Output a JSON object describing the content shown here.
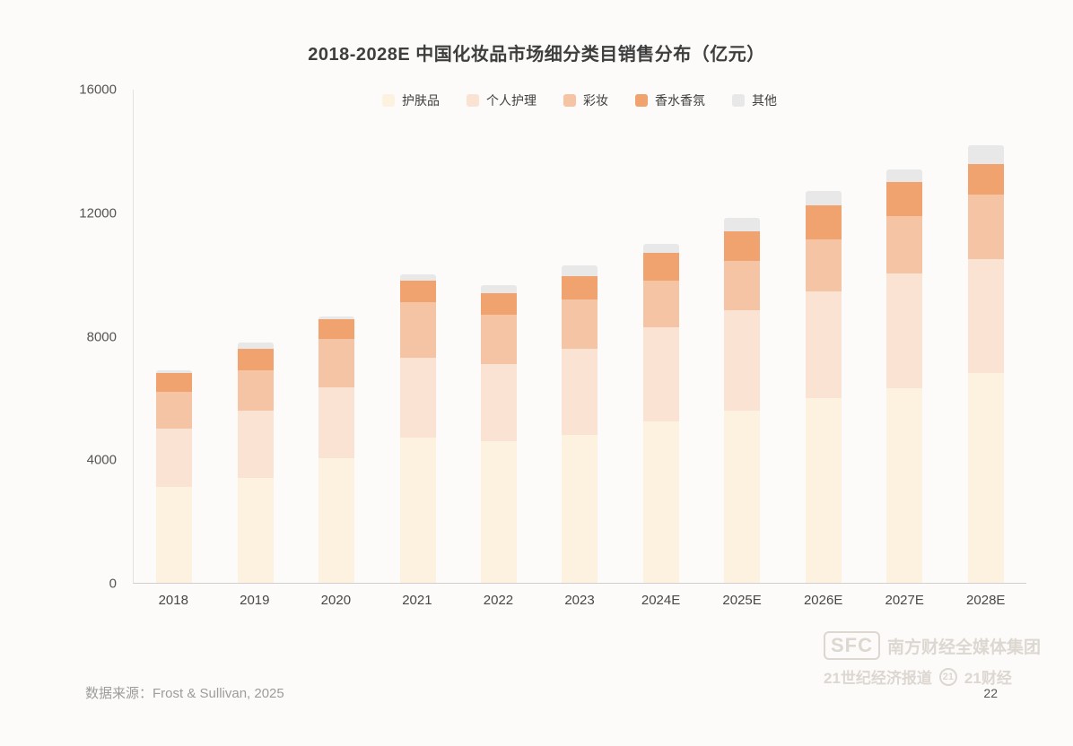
{
  "page": {
    "source": "数据来源：Frost & Sullivan, 2025",
    "page_number": "22",
    "watermark": {
      "logo": "SFC",
      "group": "南方财经全媒体集团",
      "paper": "21世纪经济报道",
      "badge": "21",
      "brand": "21财经"
    }
  },
  "chart_data": {
    "type": "bar",
    "stacked": true,
    "title": "2018-2028E 中国化妆品市场细分类目销售分布（亿元）",
    "categories": [
      "2018",
      "2019",
      "2020",
      "2021",
      "2022",
      "2023",
      "2024E",
      "2025E",
      "2026E",
      "2027E",
      "2028E"
    ],
    "series": [
      {
        "name": "护肤品",
        "color": "#fcf2df",
        "values": [
          3100,
          3400,
          4050,
          4700,
          4600,
          4800,
          5250,
          5600,
          6000,
          6300,
          6800
        ]
      },
      {
        "name": "个人护理",
        "color": "#fbe3d3",
        "values": [
          1900,
          2200,
          2300,
          2600,
          2500,
          2800,
          3050,
          3250,
          3450,
          3750,
          3700
        ]
      },
      {
        "name": "彩妆",
        "color": "#f5c4a5",
        "values": [
          1200,
          1300,
          1550,
          1800,
          1600,
          1600,
          1500,
          1600,
          1700,
          1850,
          2100
        ]
      },
      {
        "name": "香水香氛",
        "color": "#f0a26f",
        "values": [
          600,
          700,
          650,
          700,
          700,
          750,
          900,
          950,
          1100,
          1100,
          1000
        ]
      },
      {
        "name": "其他",
        "color": "#e8e8e8",
        "values": [
          100,
          200,
          100,
          200,
          250,
          350,
          300,
          450,
          450,
          400,
          600
        ]
      }
    ],
    "totals": [
      6900,
      7800,
      8650,
      10000,
      9650,
      10300,
      11000,
      11850,
      12700,
      13400,
      14200
    ],
    "xlabel": "",
    "ylabel": "",
    "ylim": [
      0,
      16000
    ],
    "yticks": [
      0,
      4000,
      8000,
      12000,
      16000
    ],
    "legend_position": "top-center",
    "grid": false
  }
}
